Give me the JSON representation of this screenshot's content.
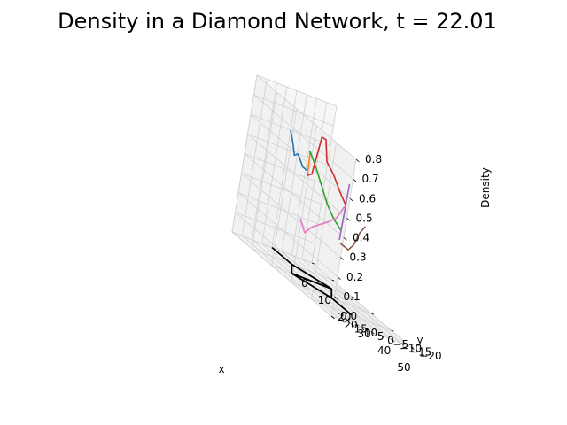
{
  "chart_data": {
    "type": "line",
    "title": "Density in a Diamond Network, t = 22.01",
    "xlabel": "x",
    "ylabel": "y",
    "zlabel": "Density",
    "xlim": [
      0,
      50
    ],
    "ylim": [
      -20,
      20
    ],
    "zlim": [
      0,
      0.8
    ],
    "x_ticks": [
      0,
      10,
      20,
      30,
      40,
      50
    ],
    "y_ticks": [
      -20,
      -15,
      -10,
      -5,
      0,
      5,
      10,
      15,
      20
    ],
    "z_ticks": [
      0.0,
      0.1,
      0.2,
      0.3,
      0.4,
      0.5,
      0.6,
      0.7,
      0.8
    ],
    "x_tick_labels": [
      "0",
      "10",
      "20",
      "30",
      "40",
      "50"
    ],
    "y_tick_labels": [
      "−20",
      "−15",
      "−10",
      "−5",
      "0",
      "5",
      "10",
      "15",
      "20"
    ],
    "z_tick_labels": [
      "0.0",
      "0.1",
      "0.2",
      "0.3",
      "0.4",
      "0.5",
      "0.6",
      "0.7",
      "0.8"
    ],
    "grid": true,
    "network": {
      "color": "#000000",
      "edges": [
        [
          [
            0,
            0
          ],
          [
            10,
            0
          ]
        ],
        [
          [
            10,
            0
          ],
          [
            20,
            10
          ]
        ],
        [
          [
            10,
            0
          ],
          [
            20,
            -10
          ]
        ],
        [
          [
            20,
            10
          ],
          [
            30,
            0
          ]
        ],
        [
          [
            20,
            -10
          ],
          [
            30,
            0
          ]
        ],
        [
          [
            20,
            10
          ],
          [
            20,
            -10
          ]
        ],
        [
          [
            30,
            0
          ],
          [
            40,
            0
          ]
        ]
      ]
    },
    "series": [
      {
        "color": "#1f77b4",
        "points": [
          [
            0,
            0,
            0.6
          ],
          [
            2,
            0,
            0.55
          ],
          [
            3.5,
            0,
            0.5
          ],
          [
            5,
            0,
            0.52
          ],
          [
            6.5,
            0,
            0.5
          ],
          [
            8,
            0,
            0.48
          ],
          [
            10,
            0,
            0.48
          ]
        ]
      },
      {
        "color": "#ff7f0e",
        "points": [
          [
            10,
            0,
            0.58
          ],
          [
            12,
            2,
            0.58
          ],
          [
            14,
            4,
            0.58
          ],
          [
            16,
            6,
            0.57
          ],
          [
            18,
            8,
            0.55
          ],
          [
            20,
            10,
            0.5
          ]
        ]
      },
      {
        "color": "#2ca02c",
        "points": [
          [
            10,
            0,
            0.58
          ],
          [
            12,
            -2,
            0.52
          ],
          [
            14,
            -4,
            0.45
          ],
          [
            16,
            -6,
            0.38
          ],
          [
            18,
            -8,
            0.33
          ],
          [
            20,
            -10,
            0.3
          ]
        ]
      },
      {
        "color": "#d62728",
        "points": [
          [
            20,
            10,
            0.5
          ],
          [
            21,
            9,
            0.52
          ],
          [
            22,
            8,
            0.72
          ],
          [
            23,
            7,
            0.72
          ],
          [
            24,
            6,
            0.62
          ],
          [
            26,
            4,
            0.58
          ],
          [
            28,
            2,
            0.52
          ],
          [
            30,
            0,
            0.47
          ]
        ]
      },
      {
        "color": "#9467bd",
        "points": [
          [
            20,
            -10,
            0.25
          ],
          [
            22,
            -8,
            0.32
          ],
          [
            24,
            -6,
            0.38
          ],
          [
            26,
            -4,
            0.42
          ],
          [
            28,
            -2,
            0.52
          ],
          [
            30,
            0,
            0.58
          ]
        ]
      },
      {
        "color": "#e377c2",
        "points": [
          [
            20,
            10,
            0.28
          ],
          [
            20,
            7,
            0.22
          ],
          [
            20,
            4,
            0.26
          ],
          [
            20,
            0,
            0.29
          ],
          [
            20,
            -4,
            0.32
          ],
          [
            20,
            -7,
            0.35
          ],
          [
            20,
            -10,
            0.42
          ]
        ]
      },
      {
        "color": "#8c564b",
        "points": [
          [
            30,
            0,
            0.28
          ],
          [
            32,
            0,
            0.28
          ],
          [
            34,
            0,
            0.28
          ],
          [
            36,
            0,
            0.32
          ],
          [
            38,
            0,
            0.4
          ],
          [
            40,
            0,
            0.45
          ]
        ]
      }
    ]
  }
}
